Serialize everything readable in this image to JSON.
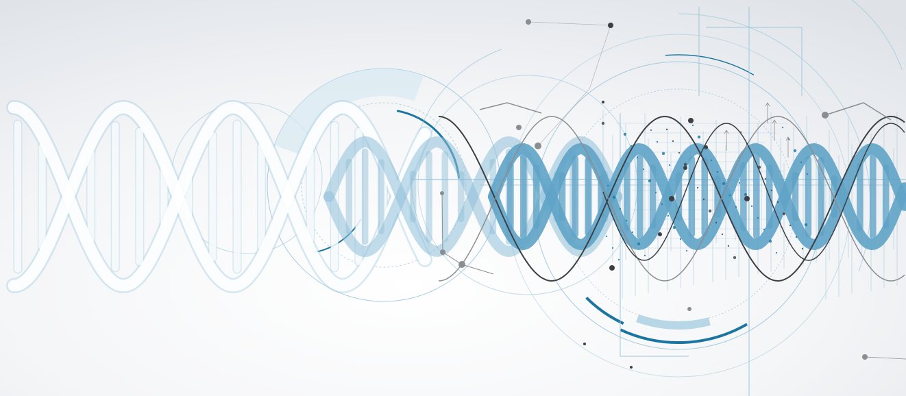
{
  "image": {
    "subject": "dna-double-helix",
    "colors": {
      "background_center": "#ffffff",
      "background_edge": "#dfe3e8",
      "helix_light": "#a9cfe3",
      "helix_mid": "#8fbfd8",
      "helix_strong": "#5fa3c7",
      "accent_blue": "#1a75a0",
      "dark_gray": "#3c3f44",
      "mid_gray": "#8a8d92",
      "thin_line": "#9cc6dc"
    },
    "icons": [
      "dna-helix-icon",
      "circle-hud-icon",
      "network-node-icon"
    ]
  }
}
